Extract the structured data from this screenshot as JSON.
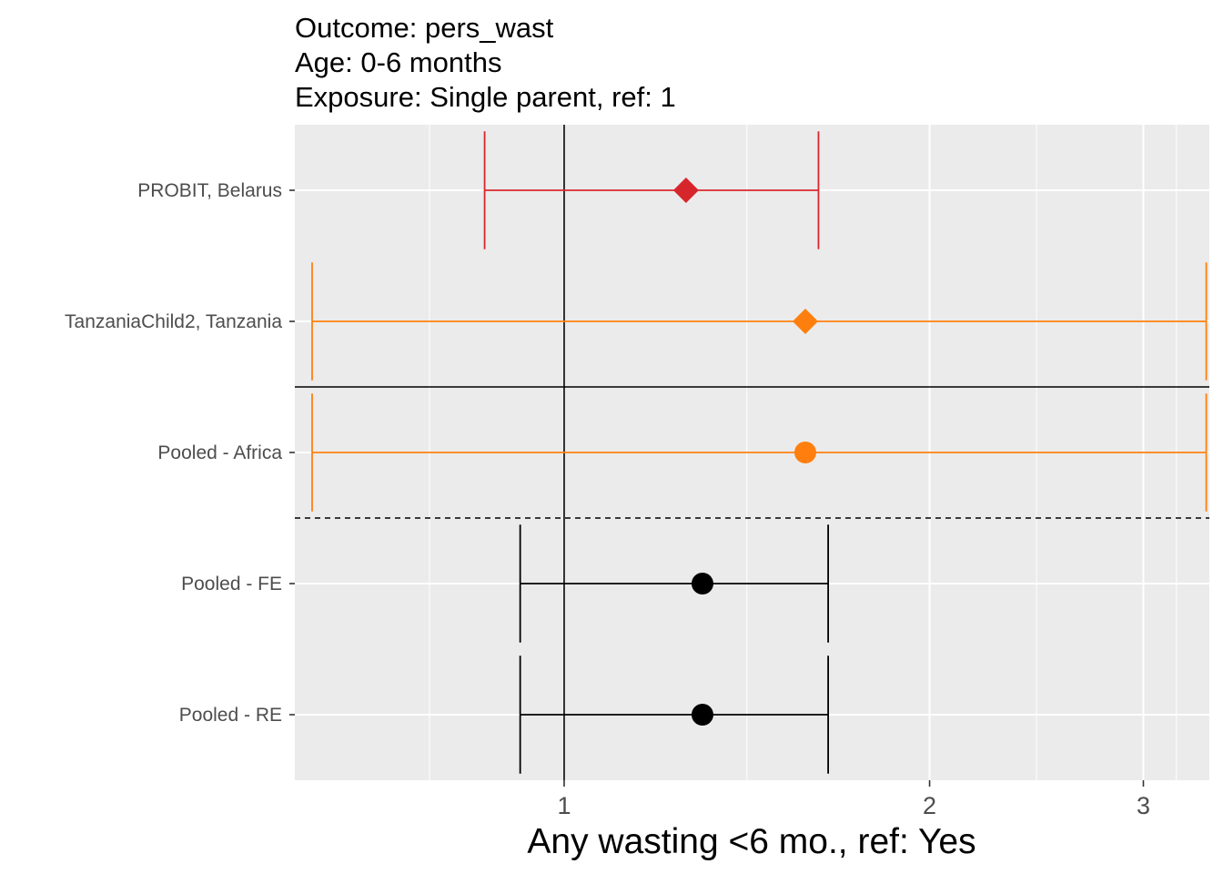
{
  "chart_data": {
    "type": "scatter",
    "subtype": "forest-plot",
    "title_lines": [
      "Outcome: pers_wast",
      "Age: 0-6 months",
      "Exposure: Single parent, ref: 1"
    ],
    "xlabel": "Any wasting  <6 mo., ref: Yes",
    "ylabel": "",
    "x_scale": "log",
    "xlim": [
      0.6,
      3.4
    ],
    "x_ticks": [
      1,
      2,
      3
    ],
    "x_tick_labels": [
      "1",
      "2",
      "3"
    ],
    "reference_line_x": 1,
    "grid": true,
    "legend": "none",
    "panel_background": "#ebebeb",
    "categories": [
      "PROBIT, Belarus",
      "TanzaniaChild2, Tanzania",
      "Pooled - Africa",
      "Pooled - FE",
      "Pooled - RE"
    ],
    "series": [
      {
        "category": "PROBIT, Belarus",
        "estimate": 1.26,
        "lower": 0.86,
        "upper": 1.62,
        "shape": "diamond",
        "color": "#d7262b"
      },
      {
        "category": "TanzaniaChild2, Tanzania",
        "estimate": 1.58,
        "lower": 0.62,
        "upper": 3.38,
        "shape": "diamond",
        "color": "#ff7f0e"
      },
      {
        "category": "Pooled - Africa",
        "estimate": 1.58,
        "lower": 0.62,
        "upper": 3.38,
        "shape": "circle",
        "color": "#ff7f0e"
      },
      {
        "category": "Pooled - FE",
        "estimate": 1.3,
        "lower": 0.92,
        "upper": 1.65,
        "shape": "circle",
        "color": "#000000"
      },
      {
        "category": "Pooled - RE",
        "estimate": 1.3,
        "lower": 0.92,
        "upper": 1.65,
        "shape": "circle",
        "color": "#000000"
      }
    ],
    "separators": [
      {
        "after_category": "TanzaniaChild2, Tanzania",
        "style": "solid"
      },
      {
        "after_category": "Pooled - Africa",
        "style": "dashed"
      }
    ]
  }
}
